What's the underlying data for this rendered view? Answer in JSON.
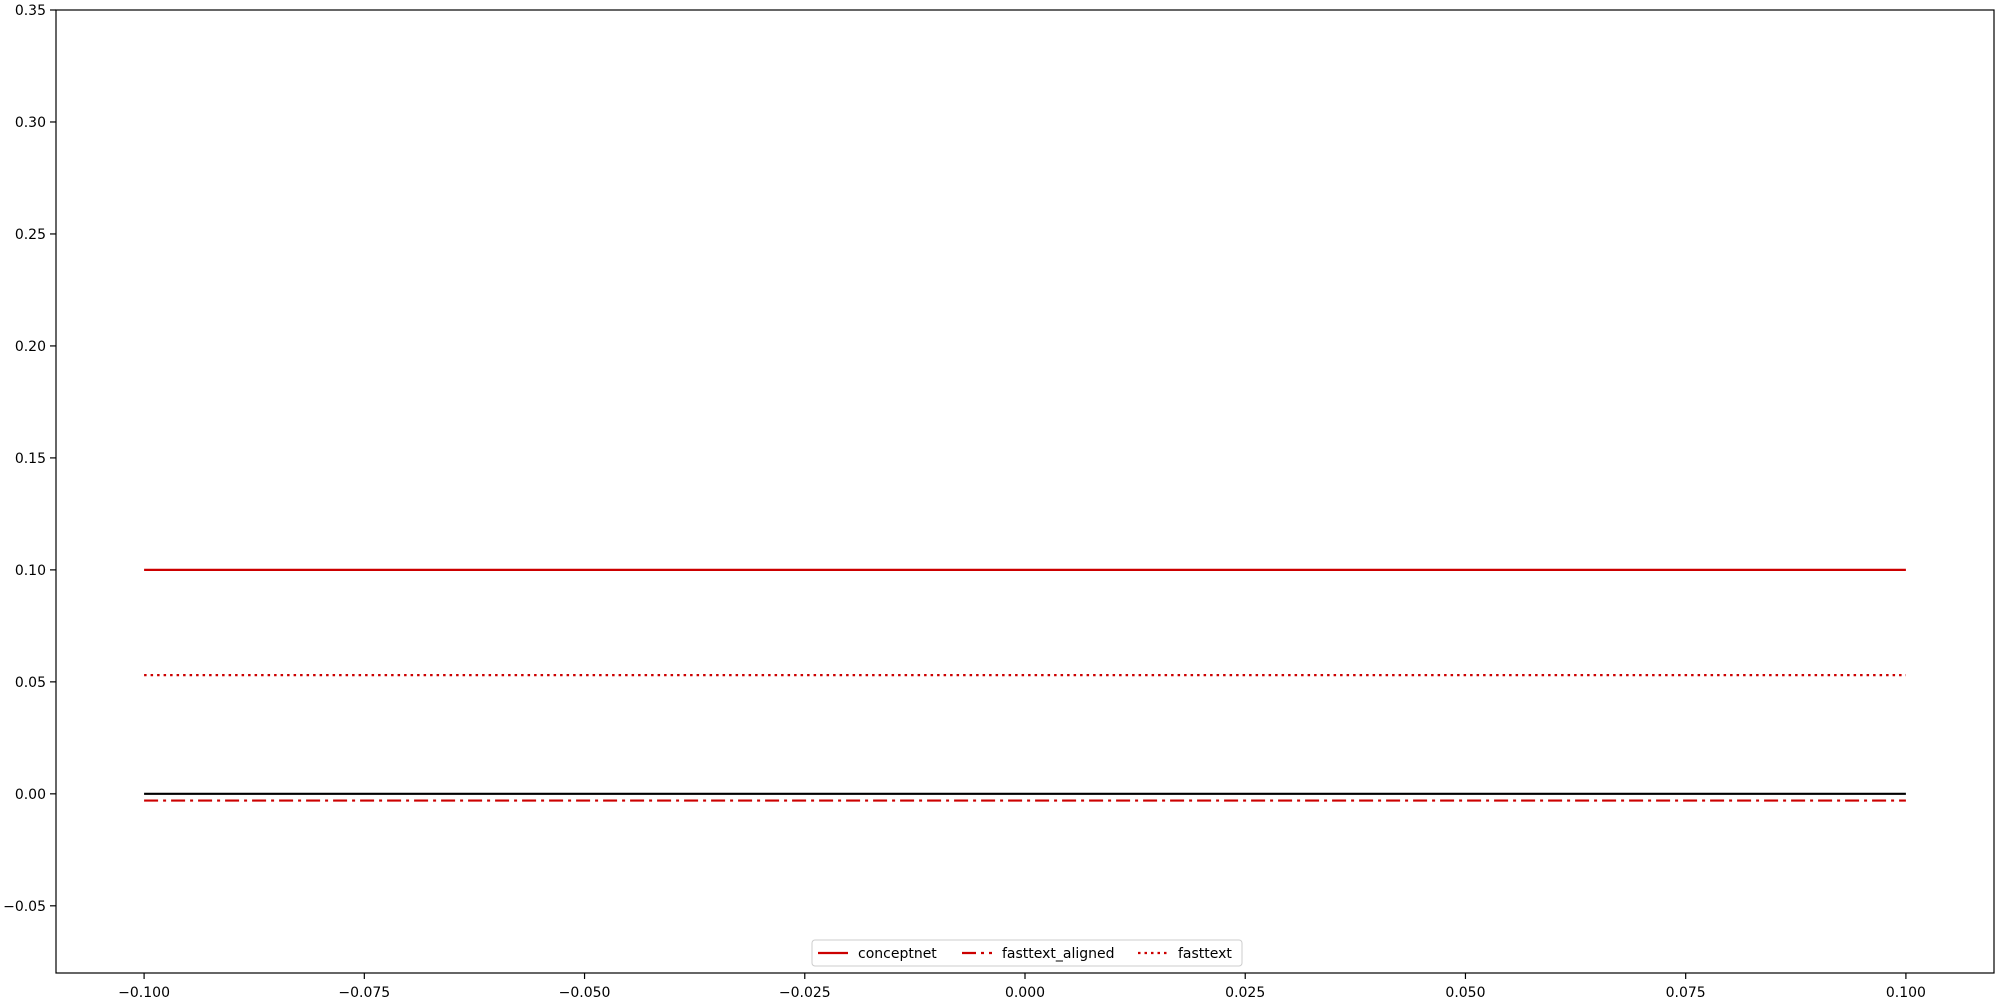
{
  "chart_data": {
    "type": "line",
    "title": "",
    "xlabel": "",
    "ylabel": "",
    "xlim": [
      -0.11,
      0.11
    ],
    "ylim": [
      -0.08,
      0.35
    ],
    "x_ticks": [
      -0.1,
      -0.075,
      -0.05,
      -0.025,
      0.0,
      0.025,
      0.05,
      0.075,
      0.1
    ],
    "x_tick_labels": [
      "−0.100",
      "−0.075",
      "−0.050",
      "−0.025",
      "0.000",
      "0.025",
      "0.050",
      "0.075",
      "0.100"
    ],
    "y_ticks": [
      -0.05,
      0.0,
      0.05,
      0.1,
      0.15,
      0.2,
      0.25,
      0.3,
      0.35
    ],
    "y_tick_labels": [
      "−0.05",
      "0.00",
      "0.05",
      "0.10",
      "0.15",
      "0.20",
      "0.25",
      "0.30",
      "0.35"
    ],
    "grid": false,
    "legend": {
      "placement": "lower-center",
      "ncol": 3
    },
    "reference_line": {
      "y": 0.0,
      "x": [
        -0.1,
        0.1
      ],
      "color": "#000000",
      "style": "solid"
    },
    "series": [
      {
        "name": "conceptnet",
        "x": [
          -0.1,
          0.1
        ],
        "y": [
          0.1,
          0.1
        ],
        "color": "#cc0000",
        "style": "solid"
      },
      {
        "name": "fasttext_aligned",
        "x": [
          -0.1,
          0.1
        ],
        "y": [
          -0.003,
          -0.003
        ],
        "color": "#cc0000",
        "style": "dashdot"
      },
      {
        "name": "fasttext",
        "x": [
          -0.1,
          0.1
        ],
        "y": [
          0.053,
          0.053
        ],
        "color": "#cc0000",
        "style": "dotted"
      }
    ]
  }
}
